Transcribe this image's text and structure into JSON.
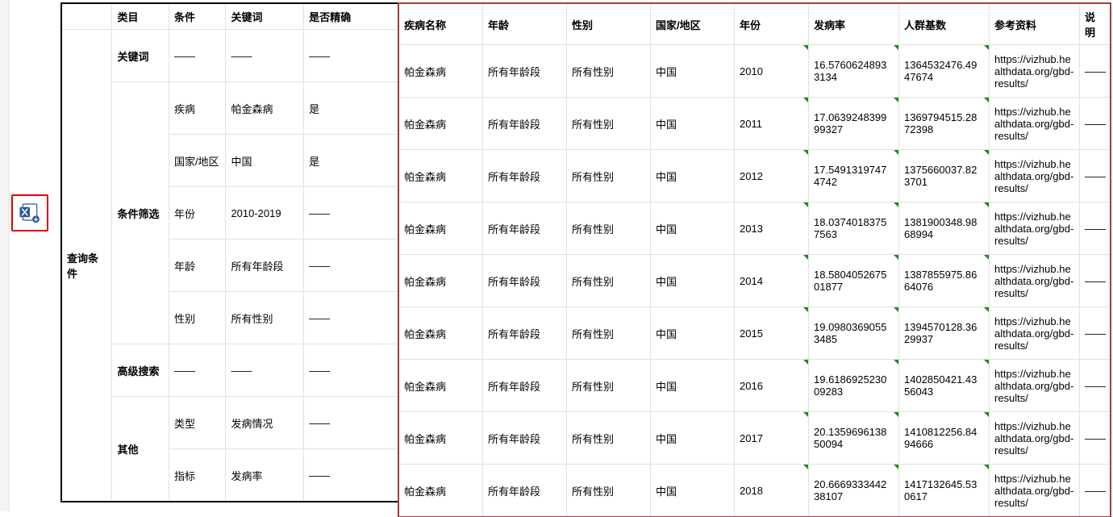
{
  "colors": {
    "red_highlight": "#e20000",
    "dark_red_outline": "#a33d3d",
    "black_outline": "#000000",
    "gridline": "#e1e1e1",
    "cell_flag": "#1d8a1d",
    "excel_blue": "#2b579a",
    "background": "#ffffff"
  },
  "icon": {
    "name": "excel-icon"
  },
  "left_panel": {
    "label": "查询条件",
    "headers": [
      "类目",
      "条件",
      "关键词",
      "是否精确"
    ],
    "groups": [
      {
        "category": "关键词",
        "rows": [
          {
            "cond": "——",
            "kw": "——",
            "exact": "——"
          }
        ]
      },
      {
        "category": "条件筛选",
        "rows": [
          {
            "cond": "疾病",
            "kw": "帕金森病",
            "exact": "是"
          },
          {
            "cond": "国家/地区",
            "kw": "中国",
            "exact": "是"
          },
          {
            "cond": "年份",
            "kw": "2010-2019",
            "exact": "——"
          },
          {
            "cond": "年龄",
            "kw": "所有年龄段",
            "exact": "——"
          },
          {
            "cond": "性别",
            "kw": "所有性别",
            "exact": "——"
          }
        ]
      },
      {
        "category": "高级搜索",
        "rows": [
          {
            "cond": "——",
            "kw": "——",
            "exact": "——"
          }
        ]
      },
      {
        "category": "其他",
        "rows": [
          {
            "cond": "类型",
            "kw": "发病情况",
            "exact": "——"
          },
          {
            "cond": "指标",
            "kw": "发病率",
            "exact": "——"
          }
        ]
      }
    ]
  },
  "right_panel": {
    "headers": [
      "疾病名称",
      "年龄",
      "性别",
      "国家/地区",
      "年份",
      "发病率",
      "人群基数",
      "参考资料",
      "说明"
    ],
    "ref_url": "https://vizhub.healthdata.org/gbd-results/",
    "note": "——",
    "rows": [
      {
        "name": "帕金森病",
        "age": "所有年龄段",
        "sex": "所有性别",
        "ctry": "中国",
        "year": "2010",
        "rate": "16.5760624893\n3134",
        "base": "1364532476.49\n47674"
      },
      {
        "name": "帕金森病",
        "age": "所有年龄段",
        "sex": "所有性别",
        "ctry": "中国",
        "year": "2011",
        "rate": "17.0639248399\n99327",
        "base": "1369794515.28\n72398"
      },
      {
        "name": "帕金森病",
        "age": "所有年龄段",
        "sex": "所有性别",
        "ctry": "中国",
        "year": "2012",
        "rate": "17.5491319747\n4742",
        "base": "1375660037.82\n3701"
      },
      {
        "name": "帕金森病",
        "age": "所有年龄段",
        "sex": "所有性别",
        "ctry": "中国",
        "year": "2013",
        "rate": "18.0374018375\n7563",
        "base": "1381900348.98\n68994"
      },
      {
        "name": "帕金森病",
        "age": "所有年龄段",
        "sex": "所有性别",
        "ctry": "中国",
        "year": "2014",
        "rate": "18.5804052675\n01877",
        "base": "1387855975.86\n64076"
      },
      {
        "name": "帕金森病",
        "age": "所有年龄段",
        "sex": "所有性别",
        "ctry": "中国",
        "year": "2015",
        "rate": "19.0980369055\n3485",
        "base": "1394570128.36\n29937"
      },
      {
        "name": "帕金森病",
        "age": "所有年龄段",
        "sex": "所有性别",
        "ctry": "中国",
        "year": "2016",
        "rate": "19.6186925230\n09283",
        "base": "1402850421.43\n56043"
      },
      {
        "name": "帕金森病",
        "age": "所有年龄段",
        "sex": "所有性别",
        "ctry": "中国",
        "year": "2017",
        "rate": "20.1359696138\n50094",
        "base": "1410812256.84\n94666"
      },
      {
        "name": "帕金森病",
        "age": "所有年龄段",
        "sex": "所有性别",
        "ctry": "中国",
        "year": "2018",
        "rate": "20.6669333442\n38107",
        "base": "1417132645.53\n0617"
      }
    ]
  }
}
